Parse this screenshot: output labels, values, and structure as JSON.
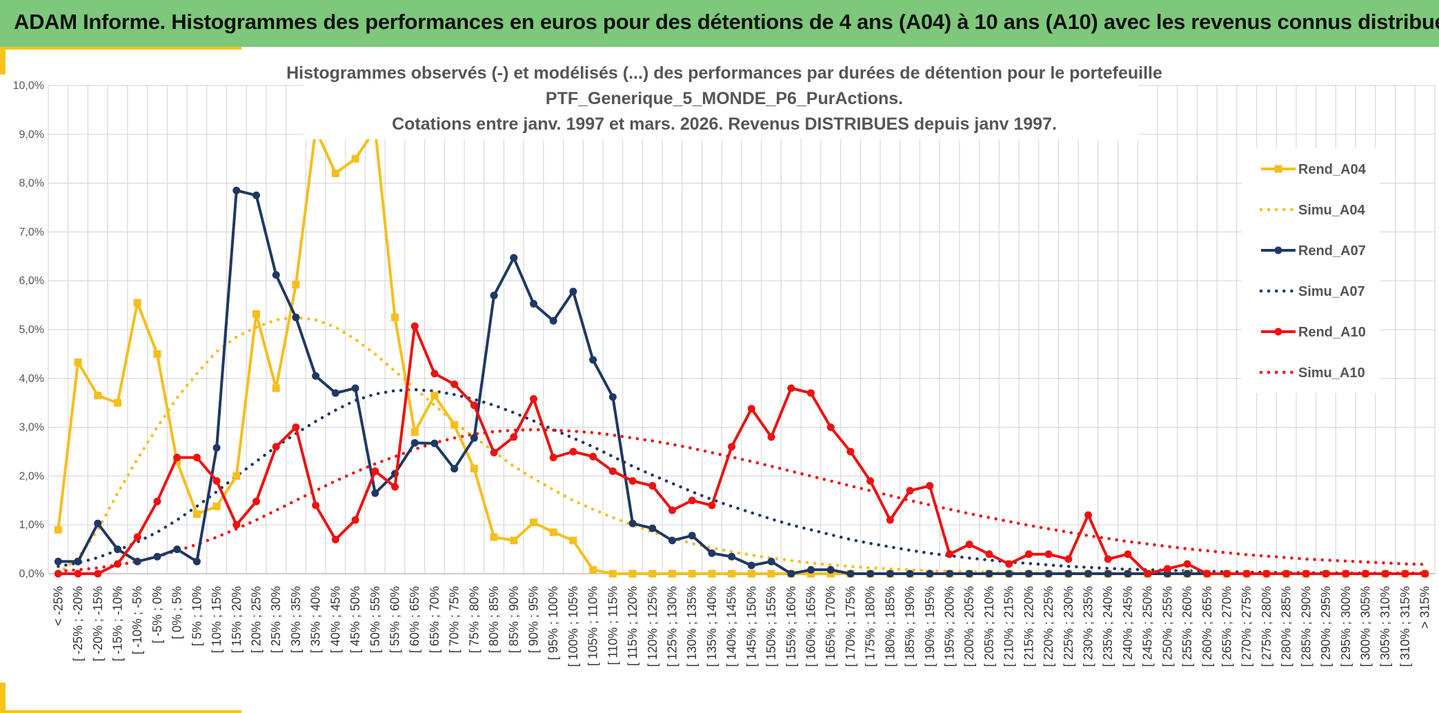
{
  "banner": {
    "title": "ADAM Informe. Histogrammes des performances en euros pour des détentions de 4 ans (A04) à 10 ans (A10) avec les revenus connus distribués"
  },
  "colors": {
    "banner": "#7dc87a",
    "accent": "#f5c518",
    "A04": "#f5be1e",
    "A07": "#1f3864",
    "A10": "#ee1111",
    "grid": "#d9d9d9"
  },
  "chart_data": {
    "type": "line",
    "title_lines": [
      "Histogrammes observés (-) et modélisés (...) des performances par durées de détention pour le portefeuille",
      "PTF_Generique_5_MONDE_P6_PurActions.",
      "Cotations entre janv. 1997 et mars. 2026. Revenus DISTRIBUES depuis janv 1997."
    ],
    "ylim": [
      0,
      10
    ],
    "y_ticks": [
      "0,0%",
      "1,0%",
      "2,0%",
      "3,0%",
      "4,0%",
      "5,0%",
      "6,0%",
      "7,0%",
      "8,0%",
      "9,0%",
      "10,0%"
    ],
    "categories": [
      "< -25%",
      "[ -25% ; -20%",
      "[ -20% ; -15%",
      "[ -15% ; -10%",
      "[ -10% ; -5%",
      "[ -5% ; 0%",
      "[ 0% ; 5%",
      "[ 5% ; 10%",
      "[ 10% ; 15%",
      "[ 15% ; 20%",
      "[ 20% ; 25%",
      "[ 25% ; 30%",
      "[ 30% ; 35%",
      "[ 35% ; 40%",
      "[ 40% ; 45%",
      "[ 45% ; 50%",
      "[ 50% ; 55%",
      "[ 55% ; 60%",
      "[ 60% ; 65%",
      "[ 65% ; 70%",
      "[ 70% ; 75%",
      "[ 75% ; 80%",
      "[ 80% ; 85%",
      "[ 85% ; 90%",
      "[ 90% ; 95%",
      "[ 95% ; 100%",
      "[ 100% ; 105%",
      "[ 105% ; 110%",
      "[ 110% ; 115%",
      "[ 115% ; 120%",
      "[ 120% ; 125%",
      "[ 125% ; 130%",
      "[ 130% ; 135%",
      "[ 135% ; 140%",
      "[ 140% ; 145%",
      "[ 145% ; 150%",
      "[ 150% ; 155%",
      "[ 155% ; 160%",
      "[ 160% ; 165%",
      "[ 165% ; 170%",
      "[ 170% ; 175%",
      "[ 175% ; 180%",
      "[ 180% ; 185%",
      "[ 185% ; 190%",
      "[ 190% ; 195%",
      "[ 195% ; 200%",
      "[ 200% ; 205%",
      "[ 205% ; 210%",
      "[ 210% ; 215%",
      "[ 215% ; 220%",
      "[ 220% ; 225%",
      "[ 225% ; 230%",
      "[ 230% ; 235%",
      "[ 235% ; 240%",
      "[ 240% ; 245%",
      "[ 245% ; 250%",
      "[ 250% ; 255%",
      "[ 255% ; 260%",
      "[ 260% ; 265%",
      "[ 265% ; 270%",
      "[ 270% ; 275%",
      "[ 275% ; 280%",
      "[ 280% ; 285%",
      "[ 285% ; 290%",
      "[ 290% ; 295%",
      "[ 295% ; 300%",
      "[ 300% ; 305%",
      "[ 305% ; 310%",
      "[ 310% ; 315%",
      "> 315%"
    ],
    "series": [
      {
        "name": "Rend_A04",
        "style": "solid",
        "marker": "square",
        "color": "#f5be1e",
        "values": [
          0.9,
          4.33,
          3.65,
          3.5,
          5.55,
          4.5,
          2.3,
          1.22,
          1.38,
          2.0,
          5.32,
          3.8,
          5.92,
          9.1,
          8.2,
          8.5,
          9.1,
          5.25,
          2.9,
          3.65,
          3.05,
          2.15,
          0.75,
          0.68,
          1.05,
          0.85,
          0.68,
          0.08,
          0,
          0,
          0,
          0,
          0,
          0,
          0,
          0,
          0,
          0,
          0,
          0,
          0,
          0,
          0,
          0,
          0,
          0,
          0,
          0,
          0,
          0,
          0,
          0,
          0,
          0,
          0,
          0,
          0,
          0,
          0,
          0,
          0,
          0,
          0,
          0,
          0,
          0,
          0,
          0,
          0,
          0
        ]
      },
      {
        "name": "Simu_A04",
        "style": "dotted",
        "marker": "none",
        "color": "#f5be1e",
        "values": [
          0.0,
          0.33,
          0.9,
          1.65,
          2.35,
          3.0,
          3.6,
          4.1,
          4.55,
          4.85,
          5.05,
          5.2,
          5.25,
          5.2,
          5.05,
          4.8,
          4.5,
          4.15,
          3.8,
          3.45,
          3.1,
          2.8,
          2.5,
          2.2,
          1.95,
          1.72,
          1.5,
          1.32,
          1.15,
          1.0,
          0.85,
          0.73,
          0.62,
          0.53,
          0.45,
          0.38,
          0.32,
          0.27,
          0.22,
          0.18,
          0.15,
          0.12,
          0.1,
          0.08,
          0.06,
          0.05,
          0.04,
          0.03,
          0.02,
          0.02,
          0.01,
          0.01,
          0.01,
          0,
          0,
          0,
          0,
          0,
          0,
          0,
          0,
          0,
          0,
          0,
          0,
          0,
          0,
          0,
          0,
          0
        ]
      },
      {
        "name": "Rend_A07",
        "style": "solid",
        "marker": "circle",
        "color": "#1f3864",
        "values": [
          0.25,
          0.25,
          1.03,
          0.5,
          0.25,
          0.35,
          0.5,
          0.25,
          2.58,
          7.85,
          7.75,
          6.12,
          5.25,
          4.05,
          3.7,
          3.8,
          1.65,
          2.05,
          2.68,
          2.67,
          2.15,
          2.78,
          5.7,
          6.47,
          5.53,
          5.18,
          5.78,
          4.38,
          3.62,
          1.03,
          0.93,
          0.68,
          0.78,
          0.42,
          0.35,
          0.17,
          0.25,
          0,
          0.08,
          0.08,
          0,
          0,
          0,
          0,
          0,
          0,
          0,
          0,
          0,
          0,
          0,
          0,
          0,
          0,
          0,
          0,
          0,
          0,
          0,
          0,
          0,
          0,
          0,
          0,
          0,
          0,
          0,
          0,
          0,
          0
        ]
      },
      {
        "name": "Simu_A07",
        "style": "dotted",
        "marker": "none",
        "color": "#1f3864",
        "values": [
          0.15,
          0.22,
          0.33,
          0.48,
          0.65,
          0.85,
          1.1,
          1.38,
          1.68,
          2.0,
          2.3,
          2.6,
          2.87,
          3.12,
          3.35,
          3.55,
          3.68,
          3.75,
          3.77,
          3.74,
          3.67,
          3.57,
          3.45,
          3.3,
          3.13,
          2.95,
          2.78,
          2.6,
          2.4,
          2.2,
          2.02,
          1.85,
          1.68,
          1.52,
          1.38,
          1.25,
          1.12,
          1.0,
          0.9,
          0.8,
          0.7,
          0.62,
          0.55,
          0.48,
          0.42,
          0.37,
          0.32,
          0.28,
          0.24,
          0.21,
          0.18,
          0.15,
          0.13,
          0.11,
          0.09,
          0.08,
          0.07,
          0.06,
          0.05,
          0.04,
          0.03,
          0.03,
          0.02,
          0.02,
          0.02,
          0.01,
          0.01,
          0.01,
          0.01,
          0.01
        ]
      },
      {
        "name": "Rend_A10",
        "style": "solid",
        "marker": "circle",
        "color": "#ee1111",
        "values": [
          0,
          0,
          0,
          0.2,
          0.75,
          1.48,
          2.38,
          2.38,
          1.9,
          1.0,
          1.48,
          2.6,
          3.0,
          1.4,
          0.7,
          1.1,
          2.1,
          1.78,
          5.07,
          4.1,
          3.88,
          3.45,
          2.48,
          2.8,
          3.58,
          2.38,
          2.5,
          2.4,
          2.1,
          1.9,
          1.8,
          1.3,
          1.5,
          1.4,
          2.6,
          3.38,
          2.8,
          3.8,
          3.7,
          3.0,
          2.5,
          1.9,
          1.1,
          1.7,
          1.8,
          0.4,
          0.6,
          0.4,
          0.2,
          0.4,
          0.4,
          0.3,
          1.2,
          0.3,
          0.4,
          0,
          0.1,
          0.2,
          0,
          0,
          0,
          0,
          0,
          0,
          0,
          0,
          0,
          0,
          0,
          0
        ]
      },
      {
        "name": "Simu_A10",
        "style": "dotted",
        "marker": "none",
        "color": "#ee1111",
        "values": [
          0.05,
          0.08,
          0.12,
          0.18,
          0.25,
          0.35,
          0.47,
          0.6,
          0.75,
          0.92,
          1.1,
          1.3,
          1.5,
          1.7,
          1.9,
          2.08,
          2.25,
          2.4,
          2.55,
          2.68,
          2.78,
          2.86,
          2.91,
          2.94,
          2.95,
          2.94,
          2.92,
          2.89,
          2.84,
          2.78,
          2.72,
          2.65,
          2.57,
          2.48,
          2.39,
          2.3,
          2.2,
          2.1,
          2.0,
          1.9,
          1.8,
          1.7,
          1.6,
          1.5,
          1.41,
          1.32,
          1.23,
          1.15,
          1.07,
          0.99,
          0.92,
          0.85,
          0.78,
          0.72,
          0.66,
          0.61,
          0.56,
          0.51,
          0.47,
          0.43,
          0.39,
          0.36,
          0.33,
          0.3,
          0.28,
          0.26,
          0.24,
          0.22,
          0.2,
          0.19
        ]
      }
    ],
    "legend_position": "right"
  }
}
